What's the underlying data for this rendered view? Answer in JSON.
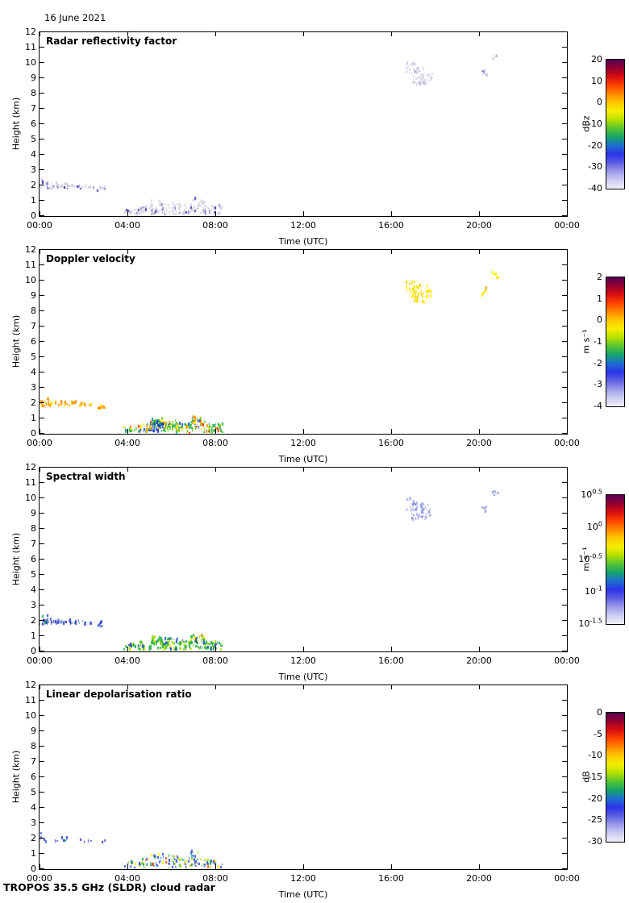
{
  "chart_data": {
    "type": "heatmap",
    "title": "16 June 2021",
    "footer": "TROPOS 35.5 GHz (SLDR) cloud radar",
    "x_axis": {
      "label": "Time (UTC)",
      "tick_labels": [
        "00:00",
        "04:00",
        "08:00",
        "12:00",
        "16:00",
        "20:00",
        "00:00"
      ],
      "tick_hours": [
        0,
        4,
        8,
        12,
        16,
        20,
        24
      ],
      "range_hours": [
        0,
        24
      ]
    },
    "y_axis": {
      "label": "Height (km)",
      "tick_labels": [
        "0",
        "1",
        "2",
        "3",
        "4",
        "5",
        "6",
        "7",
        "8",
        "9",
        "10",
        "11",
        "12"
      ],
      "range_km": [
        0,
        12
      ],
      "tick_step_km": 1
    },
    "colormap_stops_top_to_bottom": [
      "#550055",
      "#95002f",
      "#d80f10",
      "#ff4400",
      "#ff8800",
      "#ffc800",
      "#f5ee00",
      "#b5e000",
      "#55c433",
      "#17a36b",
      "#1e6fd0",
      "#2b35e8",
      "#5e5ee2",
      "#9b9bea",
      "#cdcdf2",
      "#efeffa"
    ],
    "cloud_shapes": {
      "morning_layer": [
        [
          0.0,
          0.4,
          1.7,
          2.25
        ],
        [
          0.35,
          1.05,
          1.72,
          2.05
        ],
        [
          1.05,
          1.7,
          1.72,
          2.0
        ],
        [
          1.75,
          2.1,
          1.68,
          1.92
        ],
        [
          2.2,
          2.45,
          1.72,
          1.88
        ],
        [
          2.55,
          2.95,
          1.55,
          1.85
        ]
      ],
      "early_low_level": [
        [
          3.8,
          4.55,
          0.02,
          0.4
        ],
        [
          4.5,
          5.05,
          0.02,
          0.6
        ],
        [
          5.0,
          5.6,
          0.02,
          0.95
        ],
        [
          5.55,
          6.3,
          0.02,
          0.8
        ],
        [
          6.3,
          6.9,
          0.02,
          0.65
        ],
        [
          6.85,
          7.5,
          0.1,
          1.05
        ],
        [
          7.45,
          8.3,
          0.02,
          0.6
        ]
      ],
      "low_blue_patch": [
        [
          5.05,
          5.6,
          0.05,
          0.8
        ]
      ],
      "evening_cirrus": [
        [
          16.65,
          17.05,
          9.15,
          9.9
        ],
        [
          16.9,
          17.65,
          8.5,
          9.6
        ],
        [
          17.6,
          17.85,
          8.75,
          9.3
        ]
      ],
      "evening_speck_a": [
        [
          20.1,
          20.35,
          8.95,
          9.45
        ]
      ],
      "evening_speck_b": [
        [
          20.55,
          20.85,
          10.05,
          10.45
        ]
      ]
    },
    "panels": [
      {
        "id": "reflectivity",
        "title": "Radar reflectivity factor",
        "colorbar": {
          "unit": "dBz",
          "tick_labels": [
            "20",
            "10",
            "0",
            "-10",
            "-20",
            "-30",
            "-40"
          ],
          "range": [
            20,
            -40
          ]
        },
        "echoes": [
          {
            "shape": "morning_layer",
            "density": 0.5,
            "approx_value": "-40 to -28 dBz",
            "palette": [
              [
                "#d7d7e6",
                0.45
              ],
              [
                "#c6c6de",
                0.2
              ],
              [
                "#9b9bd4",
                0.12
              ],
              [
                "#5050bb",
                0.13
              ],
              [
                "#2828a0",
                0.1
              ]
            ]
          },
          {
            "shape": "early_low_level",
            "density": 0.5,
            "approx_value": "-40 to -24 dBz",
            "palette": [
              [
                "#dcdce6",
                0.55
              ],
              [
                "#cfcfdd",
                0.25
              ],
              [
                "#9898cf",
                0.1
              ],
              [
                "#4747b5",
                0.1
              ]
            ]
          },
          {
            "shape": "evening_cirrus",
            "density": 0.38,
            "approx_value": "-38 to -30 dBz",
            "palette": [
              [
                "#dcdce8",
                0.6
              ],
              [
                "#cdcde2",
                0.25
              ],
              [
                "#b0b0da",
                0.15
              ]
            ]
          },
          {
            "shape": "evening_speck_a",
            "density": 0.45,
            "approx_value": "about -35 dBz",
            "palette": [
              [
                "#c9c9e0",
                0.6
              ],
              [
                "#8888cc",
                0.4
              ]
            ]
          },
          {
            "shape": "evening_speck_b",
            "density": 0.45,
            "approx_value": "about -35 dBz",
            "palette": [
              [
                "#d5d5e6",
                0.7
              ],
              [
                "#b0b0da",
                0.3
              ]
            ]
          }
        ]
      },
      {
        "id": "velocity",
        "title": "Doppler velocity",
        "colorbar": {
          "unit": "m s⁻¹",
          "tick_labels": [
            "2",
            "1",
            "0",
            "-1",
            "-2",
            "-3",
            "-4"
          ],
          "range": [
            2,
            -4
          ]
        },
        "echoes": [
          {
            "shape": "morning_layer",
            "density": 0.55,
            "approx_value": "+0.2 to +0.9 m/s",
            "palette": [
              [
                "#ff9900",
                0.4
              ],
              [
                "#ff7700",
                0.15
              ],
              [
                "#ffcc00",
                0.2
              ],
              [
                "#ffee22",
                0.15
              ],
              [
                "#ddbb00",
                0.1
              ]
            ]
          },
          {
            "shape": "early_low_level",
            "density": 0.55,
            "approx_value": "-2.5 to +1.0 m/s",
            "palette": [
              [
                "#33bb33",
                0.25
              ],
              [
                "#88cc22",
                0.13
              ],
              [
                "#ffee00",
                0.18
              ],
              [
                "#ff9900",
                0.15
              ],
              [
                "#ff3300",
                0.09
              ],
              [
                "#2255dd",
                0.1
              ],
              [
                "#11bb88",
                0.1
              ]
            ]
          },
          {
            "shape": "low_blue_patch",
            "density": 0.5,
            "approx_value": "-2 to -3 m/s",
            "palette": [
              [
                "#2244dd",
                0.45
              ],
              [
                "#1133bb",
                0.25
              ],
              [
                "#3377ee",
                0.15
              ],
              [
                "#33aa55",
                0.15
              ]
            ]
          },
          {
            "shape": "evening_cirrus",
            "density": 0.38,
            "approx_value": "-0.3 to +0.3 m/s",
            "palette": [
              [
                "#ffee00",
                0.6
              ],
              [
                "#ffdd22",
                0.25
              ],
              [
                "#eecc00",
                0.15
              ]
            ]
          },
          {
            "shape": "evening_speck_a",
            "density": 0.45,
            "approx_value": "0 to +0.5 m/s",
            "palette": [
              [
                "#ffaa00",
                0.5
              ],
              [
                "#ffee00",
                0.5
              ]
            ]
          },
          {
            "shape": "evening_speck_b",
            "density": 0.45,
            "approx_value": "about 0 m/s",
            "palette": [
              [
                "#ffee00",
                0.8
              ],
              [
                "#ffdd22",
                0.2
              ]
            ]
          }
        ]
      },
      {
        "id": "spectral-width",
        "title": "Spectral width",
        "colorbar": {
          "unit": "m s⁻¹",
          "tick_labels": [
            "10^0.5",
            "10^0",
            "10^-0.5",
            "10^-1",
            "10^-1.5"
          ],
          "range_log10": [
            0.5,
            -1.5
          ]
        },
        "echoes": [
          {
            "shape": "morning_layer",
            "density": 0.55,
            "approx_value": "0.06 to 0.12 m/s",
            "palette": [
              [
                "#3344cc",
                0.35
              ],
              [
                "#2233aa",
                0.15
              ],
              [
                "#5566dd",
                0.2
              ],
              [
                "#22aa66",
                0.12
              ],
              [
                "#8899e8",
                0.18
              ]
            ]
          },
          {
            "shape": "early_low_level",
            "density": 0.55,
            "approx_value": "0.2 to 0.6 m/s",
            "palette": [
              [
                "#33bb44",
                0.35
              ],
              [
                "#22aa66",
                0.2
              ],
              [
                "#aadd00",
                0.12
              ],
              [
                "#ffee00",
                0.13
              ],
              [
                "#2244cc",
                0.12
              ],
              [
                "#66cc22",
                0.08
              ]
            ]
          },
          {
            "shape": "evening_cirrus",
            "density": 0.38,
            "approx_value": "about 0.05 m/s",
            "palette": [
              [
                "#aab0e8",
                0.5
              ],
              [
                "#8890dd",
                0.3
              ],
              [
                "#c8ccf0",
                0.2
              ]
            ]
          },
          {
            "shape": "evening_speck_a",
            "density": 0.45,
            "approx_value": "about 0.05 m/s",
            "palette": [
              [
                "#8890dd",
                0.6
              ],
              [
                "#aab0e8",
                0.4
              ]
            ]
          },
          {
            "shape": "evening_speck_b",
            "density": 0.45,
            "approx_value": "about 0.05 m/s",
            "palette": [
              [
                "#aab0e8",
                0.7
              ],
              [
                "#8890dd",
                0.3
              ]
            ]
          }
        ]
      },
      {
        "id": "ldr",
        "title": "Linear depolarisation ratio",
        "colorbar": {
          "unit": "dB",
          "tick_labels": [
            "0",
            "-5",
            "-10",
            "-15",
            "-20",
            "-25",
            "-30"
          ],
          "range": [
            0,
            -30
          ]
        },
        "echoes": [
          {
            "shape": "morning_layer",
            "density": 0.14,
            "approx_value": "about -25 dB",
            "palette": [
              [
                "#3344cc",
                0.5
              ],
              [
                "#5566dd",
                0.3
              ],
              [
                "#22aa88",
                0.2
              ]
            ]
          },
          {
            "shape": "early_low_level",
            "density": 0.32,
            "approx_value": "-28 to -10 dB",
            "palette": [
              [
                "#3355cc",
                0.3
              ],
              [
                "#5566dd",
                0.15
              ],
              [
                "#22aa55",
                0.18
              ],
              [
                "#aadd00",
                0.12
              ],
              [
                "#ffee00",
                0.1
              ],
              [
                "#ff5500",
                0.07
              ],
              [
                "#33bbcc",
                0.08
              ]
            ]
          }
        ]
      }
    ]
  }
}
